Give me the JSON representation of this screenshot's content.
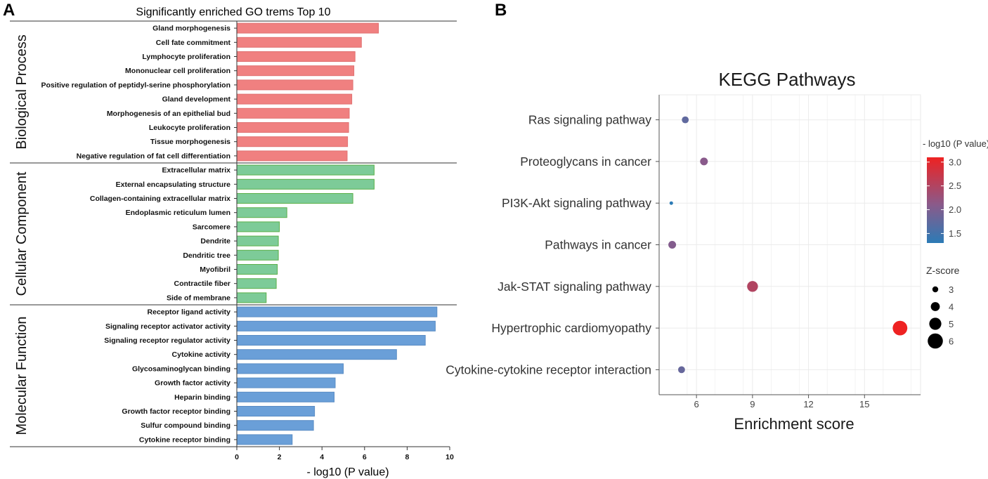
{
  "panel_a": {
    "letter": "A"
  },
  "panel_b": {
    "letter": "B"
  },
  "colors": {
    "bp_fill": "#f08080",
    "bp_stroke": "#e07070",
    "cc_fill": "#7dcb98",
    "cc_stroke": "#5bb04a",
    "mf_fill": "#6a9fd8",
    "mf_stroke": "#5a8cc4",
    "grad_low": "#2c7bb6",
    "grad_mid": "#8a5a8a",
    "grad_high": "#ee2222",
    "panel_bg": "#ffffff",
    "grid": "#ebebeb"
  },
  "chart_data": [
    {
      "type": "bar",
      "orientation": "horizontal",
      "title": "Significantly enriched GO trems Top 10",
      "xlabel": "- log10 (P value)",
      "xlim": [
        0,
        10
      ],
      "xticks": [
        "0",
        "2",
        "4",
        "6",
        "8",
        "10"
      ],
      "groups": [
        {
          "name": "Biological Process",
          "categories": [
            "Gland morphogenesis",
            "Cell fate commitment",
            "Lymphocyte proliferation",
            "Mononuclear cell proliferation",
            "Positive regulation of peptidyl-serine phosphorylation",
            "Gland development",
            "Morphogenesis of an epithelial bud",
            "Leukocyte proliferation",
            "Tissue morphogenesis",
            "Negative regulation of fat cell differentiation"
          ],
          "values": [
            6.65,
            5.85,
            5.55,
            5.5,
            5.45,
            5.4,
            5.28,
            5.25,
            5.2,
            5.18
          ]
        },
        {
          "name": "Cellular Component",
          "categories": [
            "Extracellular matrix",
            "External encapsulating structure",
            "Collagen-containing extracellular matrix",
            "Endoplasmic reticulum lumen",
            "Sarcomere",
            "Dendrite",
            "Dendritic tree",
            "Myofibril",
            "Contractile fiber",
            "Side of membrane"
          ],
          "values": [
            6.45,
            6.45,
            5.45,
            2.35,
            2.0,
            1.95,
            1.95,
            1.9,
            1.85,
            1.38
          ]
        },
        {
          "name": "Molecular Function",
          "categories": [
            "Receptor ligand activity",
            "Signaling receptor activator activity",
            "Signaling receptor regulator activity",
            "Cytokine activity",
            "Glycosaminoglycan binding",
            "Growth factor activity",
            "Heparin binding",
            "Growth factor receptor binding",
            "Sulfur compound binding",
            "Cytokine receptor binding"
          ],
          "values": [
            9.4,
            9.32,
            8.85,
            7.5,
            5.0,
            4.62,
            4.57,
            3.65,
            3.6,
            2.6
          ]
        }
      ]
    },
    {
      "type": "scatter",
      "title": "KEGG Pathways",
      "xlabel": "Enrichment score",
      "xlim": [
        4,
        18
      ],
      "xticks": [
        6,
        9,
        12,
        15
      ],
      "points": [
        {
          "pathway": "Ras signaling pathway",
          "x": 5.4,
          "neglog10p": 1.75,
          "zscore": 3.3
        },
        {
          "pathway": "Proteoglycans in cancer",
          "x": 6.4,
          "neglog10p": 2.1,
          "zscore": 3.6
        },
        {
          "pathway": "PI3K-Akt signaling pathway",
          "x": 4.65,
          "neglog10p": 1.3,
          "zscore": 2.0
        },
        {
          "pathway": "Pathways in cancer",
          "x": 4.7,
          "neglog10p": 2.05,
          "zscore": 3.6
        },
        {
          "pathway": "Jak-STAT signaling pathway",
          "x": 9.0,
          "neglog10p": 2.5,
          "zscore": 4.6
        },
        {
          "pathway": "Hypertrophic cardiomyopathy",
          "x": 16.9,
          "neglog10p": 3.1,
          "zscore": 5.8
        },
        {
          "pathway": "Cytokine-cytokine receptor interaction",
          "x": 5.2,
          "neglog10p": 1.8,
          "zscore": 3.3
        }
      ],
      "color_legend": {
        "title": "- log10 (P value)",
        "range": [
          1.3,
          3.1
        ],
        "ticks": [
          "1.5",
          "2.0",
          "2.5",
          "3.0"
        ]
      },
      "size_legend": {
        "title": "Z-score",
        "values": [
          3,
          4,
          5,
          6
        ],
        "labels": [
          "3",
          "4",
          "5",
          "6"
        ]
      }
    }
  ]
}
